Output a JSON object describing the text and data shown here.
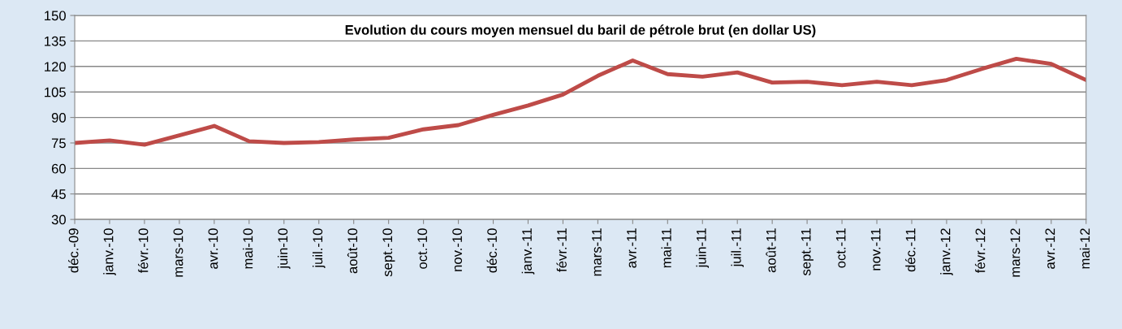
{
  "chart_data": {
    "type": "line",
    "title": "Evolution du cours moyen mensuel du baril de pétrole brut (en dollar US)",
    "categories": [
      "déc.-09",
      "janv.-10",
      "févr.-10",
      "mars-10",
      "avr.-10",
      "mai-10",
      "juin-10",
      "juil.-10",
      "août-10",
      "sept.-10",
      "oct.-10",
      "nov.-10",
      "déc.-10",
      "janv.-11",
      "févr.-11",
      "mars-11",
      "avr.-11",
      "mai-11",
      "juin-11",
      "juil.-11",
      "août-11",
      "sept.-11",
      "oct.-11",
      "nov.-11",
      "déc.-11",
      "janv.-12",
      "févr.-12",
      "mars-12",
      "avr.-12",
      "mai-12"
    ],
    "series": [
      {
        "color": "#be4b48",
        "values": [
          75,
          76.5,
          74,
          79.5,
          85,
          76,
          75,
          75.5,
          77,
          78,
          83,
          85.5,
          91.5,
          97,
          103.5,
          114.5,
          123.5,
          115.5,
          114,
          116.5,
          110.5,
          111,
          109,
          111,
          109,
          112,
          118.5,
          124.5,
          121.5,
          112
        ]
      }
    ],
    "ylim": [
      30,
      150
    ],
    "yticks": [
      30,
      45,
      60,
      75,
      90,
      105,
      120,
      135,
      150
    ],
    "grid": "y",
    "legend": false,
    "marker": "none",
    "line_style": "solid"
  }
}
